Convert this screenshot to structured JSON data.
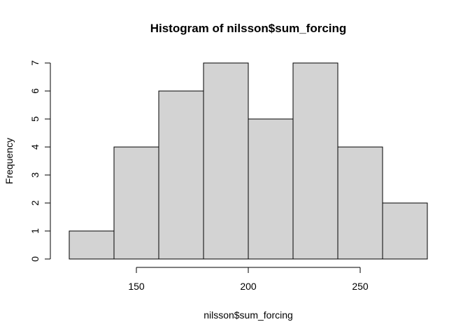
{
  "chart_data": {
    "type": "bar",
    "title": "Histogram of nilsson$sum_forcing",
    "xlabel": "nilsson$sum_forcing",
    "ylabel": "Frequency",
    "bins": [
      {
        "start": 120,
        "end": 140,
        "count": 1
      },
      {
        "start": 140,
        "end": 160,
        "count": 4
      },
      {
        "start": 160,
        "end": 180,
        "count": 6
      },
      {
        "start": 180,
        "end": 200,
        "count": 7
      },
      {
        "start": 200,
        "end": 220,
        "count": 5
      },
      {
        "start": 220,
        "end": 240,
        "count": 7
      },
      {
        "start": 240,
        "end": 260,
        "count": 4
      },
      {
        "start": 260,
        "end": 280,
        "count": 2
      }
    ],
    "xlim": [
      120,
      280
    ],
    "ylim": [
      0,
      7
    ],
    "x_ticks": [
      150,
      200,
      250
    ],
    "y_ticks": [
      0,
      1,
      2,
      3,
      4,
      5,
      6,
      7
    ],
    "grid": false,
    "bar_color": "#d3d3d3",
    "border_color": "#000000"
  }
}
